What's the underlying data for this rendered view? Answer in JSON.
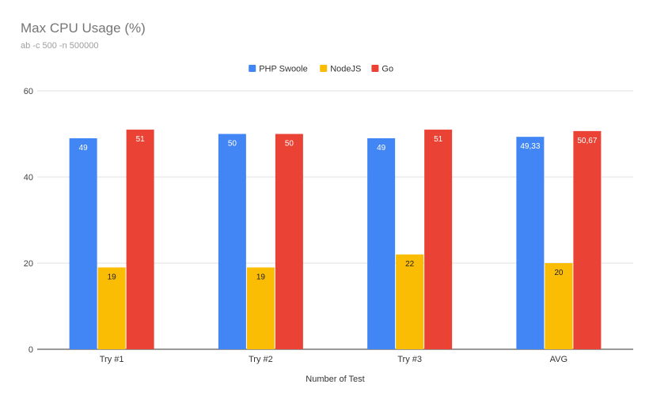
{
  "chart_data": {
    "type": "bar",
    "title": "Max CPU Usage (%)",
    "subtitle": "ab -c 500 -n 500000",
    "xlabel": "Number of Test",
    "ylabel": "",
    "ylim": [
      0,
      60
    ],
    "yticks": [
      0,
      20,
      40,
      60
    ],
    "grid": true,
    "legend_position": "top",
    "categories": [
      "Try #1",
      "Try #2",
      "Try #3",
      "AVG"
    ],
    "series": [
      {
        "name": "PHP Swoole",
        "color": "#4285f4",
        "values": [
          49,
          50,
          49,
          49.33
        ],
        "labels": [
          "49",
          "50",
          "49",
          "49,33"
        ]
      },
      {
        "name": "NodeJS",
        "color": "#fbbc04",
        "values": [
          19,
          19,
          22,
          20
        ],
        "labels": [
          "19",
          "19",
          "22",
          "20"
        ]
      },
      {
        "name": "Go",
        "color": "#ea4335",
        "values": [
          51,
          50,
          51,
          50.67
        ],
        "labels": [
          "51",
          "50",
          "51",
          "50,67"
        ]
      }
    ]
  }
}
